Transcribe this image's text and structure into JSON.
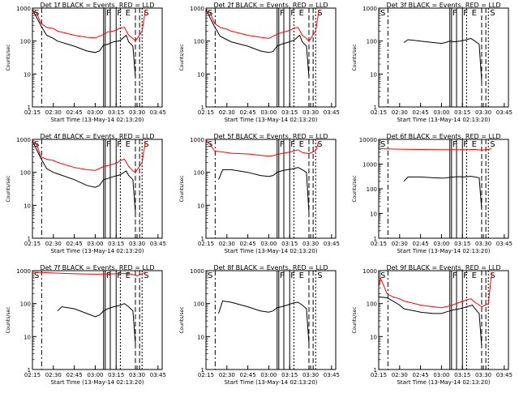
{
  "figure": {
    "x_ticks": [
      "02:15",
      "02:30",
      "02:45",
      "03:00",
      "03:15",
      "03:30",
      "03:45"
    ],
    "x_label": "Start Time (13-May-14 02:13:20)",
    "y_label": "Counts/sec",
    "y_ticks": [
      "1",
      "10",
      "100",
      "1000"
    ],
    "colors": {
      "events": "#000000",
      "lld": "#ff0000",
      "axes": "#000000"
    }
  },
  "chart_data": [
    {
      "type": "line",
      "title": "Det 1f BLACK = Events, RED = LLD",
      "ylim": [
        1,
        1000
      ],
      "markers": {
        "left": "S",
        "mid": "F",
        "right_mid": "E",
        "right": "S"
      },
      "series": [
        {
          "name": "Events",
          "x": [
            2.25,
            2.35,
            2.42,
            2.5,
            2.55,
            2.75,
            2.9,
            3.0,
            3.05,
            3.1,
            3.15,
            3.22,
            3.27,
            3.3,
            3.37,
            3.4,
            3.45,
            3.48
          ],
          "y": [
            900,
            300,
            150,
            120,
            100,
            70,
            50,
            45,
            50,
            75,
            80,
            95,
            100,
            105,
            150,
            95,
            70,
            8
          ]
        },
        {
          "name": "LLD",
          "x": [
            2.25,
            2.3,
            2.35,
            2.42,
            2.5,
            2.55,
            2.75,
            2.9,
            3.0,
            3.05,
            3.1,
            3.15,
            3.22,
            3.27,
            3.3,
            3.35,
            3.4,
            3.45,
            3.48,
            3.56,
            3.6
          ],
          "y": [
            800,
            700,
            350,
            260,
            240,
            200,
            150,
            130,
            125,
            140,
            160,
            190,
            200,
            230,
            250,
            260,
            150,
            120,
            100,
            200,
            900
          ]
        }
      ]
    },
    {
      "type": "line",
      "title": "Det 2f BLACK = Events, RED = LLD",
      "ylim": [
        1,
        1000
      ],
      "markers": {
        "left": "S",
        "mid": "F",
        "right_mid": "E",
        "right": "S"
      },
      "series": [
        {
          "name": "Events",
          "x": [
            2.25,
            2.35,
            2.42,
            2.5,
            2.55,
            2.75,
            2.9,
            3.0,
            3.05,
            3.1,
            3.15,
            3.22,
            3.27,
            3.3,
            3.37,
            3.4,
            3.45,
            3.48
          ],
          "y": [
            900,
            280,
            140,
            110,
            95,
            70,
            50,
            45,
            48,
            70,
            80,
            90,
            100,
            105,
            150,
            95,
            70,
            8
          ]
        },
        {
          "name": "LLD",
          "x": [
            2.25,
            2.3,
            2.35,
            2.42,
            2.5,
            2.55,
            2.75,
            2.9,
            3.0,
            3.05,
            3.1,
            3.15,
            3.22,
            3.27,
            3.3,
            3.35,
            3.4,
            3.45,
            3.48,
            3.56,
            3.6
          ],
          "y": [
            800,
            700,
            350,
            260,
            230,
            200,
            150,
            130,
            120,
            140,
            160,
            180,
            200,
            220,
            250,
            260,
            150,
            120,
            100,
            200,
            900
          ]
        }
      ]
    },
    {
      "type": "line",
      "title": "Det 3f BLACK = Events, RED = LLD",
      "ylim": [
        1,
        1000
      ],
      "markers": {
        "left": "S",
        "mid": "F",
        "right_mid": "E",
        "right": "S"
      },
      "series": [
        {
          "name": "Events",
          "x": [
            2.55,
            2.6,
            2.75,
            2.9,
            3.0,
            3.05,
            3.1,
            3.15,
            3.22,
            3.27,
            3.3,
            3.35,
            3.4,
            3.45,
            3.48
          ],
          "y": [
            90,
            110,
            100,
            90,
            85,
            90,
            100,
            95,
            100,
            105,
            110,
            120,
            100,
            80,
            6
          ]
        }
      ]
    },
    {
      "type": "line",
      "title": "Det 4f BLACK = Events, RED = LLD",
      "ylim": [
        1,
        1000
      ],
      "markers": {
        "left": "S",
        "mid": "F",
        "right_mid": "E",
        "right": "S"
      },
      "series": [
        {
          "name": "Events",
          "x": [
            2.25,
            2.35,
            2.42,
            2.5,
            2.55,
            2.75,
            2.9,
            3.0,
            3.05,
            3.1,
            3.15,
            3.22,
            3.27,
            3.3,
            3.37,
            3.4,
            3.45,
            3.48
          ],
          "y": [
            900,
            270,
            130,
            100,
            90,
            60,
            40,
            35,
            40,
            60,
            65,
            75,
            80,
            85,
            110,
            80,
            60,
            6
          ]
        },
        {
          "name": "LLD",
          "x": [
            2.25,
            2.3,
            2.35,
            2.42,
            2.5,
            2.55,
            2.75,
            2.9,
            3.0,
            3.05,
            3.1,
            3.15,
            3.22,
            3.27,
            3.3,
            3.35,
            3.4,
            3.45,
            3.48,
            3.56,
            3.6
          ],
          "y": [
            800,
            700,
            300,
            250,
            230,
            200,
            140,
            120,
            115,
            130,
            150,
            160,
            180,
            200,
            230,
            250,
            150,
            110,
            100,
            200,
            900
          ]
        }
      ]
    },
    {
      "type": "line",
      "title": "Det 5f BLACK = Events, RED = LLD",
      "ylim": [
        1,
        1000
      ],
      "markers": {
        "left": "S",
        "mid": "F",
        "right_mid": "E",
        "right": "S"
      },
      "series": [
        {
          "name": "Events",
          "x": [
            2.4,
            2.45,
            2.55,
            2.75,
            2.9,
            3.0,
            3.05,
            3.1,
            3.15,
            3.22,
            3.27,
            3.3,
            3.35,
            3.4,
            3.45,
            3.48
          ],
          "y": [
            60,
            120,
            120,
            100,
            80,
            75,
            80,
            100,
            110,
            120,
            125,
            130,
            140,
            120,
            100,
            6
          ]
        },
        {
          "name": "LLD",
          "x": [
            2.25,
            2.3,
            2.35,
            2.42,
            2.5,
            2.55,
            2.75,
            2.9,
            3.0,
            3.05,
            3.1,
            3.15,
            3.22,
            3.27,
            3.3,
            3.35,
            3.4,
            3.45,
            3.48,
            3.56,
            3.6
          ],
          "y": [
            900,
            700,
            450,
            420,
            400,
            380,
            360,
            330,
            310,
            320,
            350,
            370,
            400,
            420,
            450,
            480,
            400,
            380,
            370,
            450,
            900
          ]
        }
      ]
    },
    {
      "type": "line",
      "title": "Det 6f BLACK = Events, RED = LLD",
      "ylim": [
        1,
        10000
      ],
      "markers": {
        "left": "S",
        "mid": "F",
        "right_mid": "E",
        "right": "S"
      },
      "series": [
        {
          "name": "Events",
          "x": [
            2.55,
            2.6,
            2.75,
            2.9,
            3.0,
            3.05,
            3.1,
            3.15,
            3.22,
            3.27,
            3.3,
            3.35,
            3.4,
            3.45,
            3.48
          ],
          "y": [
            200,
            300,
            300,
            280,
            270,
            275,
            290,
            300,
            310,
            300,
            310,
            320,
            300,
            280,
            15
          ]
        },
        {
          "name": "LLD",
          "x": [
            2.25,
            2.5,
            2.75,
            3.0,
            3.25,
            3.4,
            3.5,
            3.6
          ],
          "y": [
            4200,
            4000,
            3900,
            3800,
            3800,
            3900,
            3700,
            4200
          ]
        }
      ]
    },
    {
      "type": "line",
      "title": "Det 7f BLACK = Events, RED = LLD",
      "ylim": [
        1,
        1000
      ],
      "markers": {
        "left": "S",
        "mid": "F",
        "right_mid": "E",
        "right": "S"
      },
      "series": [
        {
          "name": "Events",
          "x": [
            2.55,
            2.6,
            2.75,
            2.9,
            3.0,
            3.05,
            3.1,
            3.15,
            3.22,
            3.27,
            3.3,
            3.35,
            3.4,
            3.45,
            3.48
          ],
          "y": [
            60,
            80,
            70,
            50,
            40,
            45,
            60,
            70,
            80,
            85,
            90,
            100,
            80,
            60,
            6
          ]
        },
        {
          "name": "LLD",
          "x": [
            2.25,
            2.5,
            2.75,
            3.0,
            3.25,
            3.4,
            3.5,
            3.6
          ],
          "y": [
            900,
            850,
            800,
            780,
            800,
            820,
            700,
            900
          ]
        }
      ]
    },
    {
      "type": "line",
      "title": "Det 8f BLACK = Events, RED = LLD",
      "ylim": [
        1,
        1000
      ],
      "markers": {
        "left": "S",
        "mid": "F",
        "right_mid": "E",
        "right": "S"
      },
      "series": [
        {
          "name": "Events",
          "x": [
            2.4,
            2.45,
            2.55,
            2.75,
            2.9,
            3.0,
            3.05,
            3.1,
            3.15,
            3.22,
            3.27,
            3.3,
            3.35,
            3.4,
            3.45,
            3.48
          ],
          "y": [
            50,
            120,
            110,
            80,
            60,
            55,
            60,
            75,
            80,
            90,
            100,
            105,
            110,
            90,
            70,
            6
          ]
        }
      ]
    },
    {
      "type": "line",
      "title": "Det 9f BLACK = Events, RED = LLD",
      "ylim": [
        1,
        1000
      ],
      "markers": {
        "left": "S",
        "mid": "F",
        "right_mid": "E",
        "right": "S"
      },
      "series": [
        {
          "name": "Events",
          "x": [
            2.25,
            2.35,
            2.42,
            2.5,
            2.55,
            2.75,
            2.9,
            3.0,
            3.05,
            3.1,
            3.15,
            3.22,
            3.27,
            3.3,
            3.37,
            3.4,
            3.45,
            3.48
          ],
          "y": [
            160,
            150,
            120,
            90,
            70,
            55,
            50,
            50,
            55,
            60,
            65,
            70,
            75,
            80,
            90,
            70,
            50,
            5
          ]
        },
        {
          "name": "LLD",
          "x": [
            2.25,
            2.27,
            2.3,
            2.35,
            2.42,
            2.5,
            2.55,
            2.75,
            2.9,
            3.0,
            3.05,
            3.1,
            3.15,
            3.22,
            3.27,
            3.3,
            3.35,
            3.4,
            3.45,
            3.48,
            3.56,
            3.6
          ],
          "y": [
            300,
            600,
            400,
            200,
            160,
            140,
            120,
            90,
            80,
            75,
            80,
            85,
            95,
            110,
            120,
            130,
            140,
            110,
            90,
            80,
            100,
            900
          ]
        }
      ]
    }
  ]
}
